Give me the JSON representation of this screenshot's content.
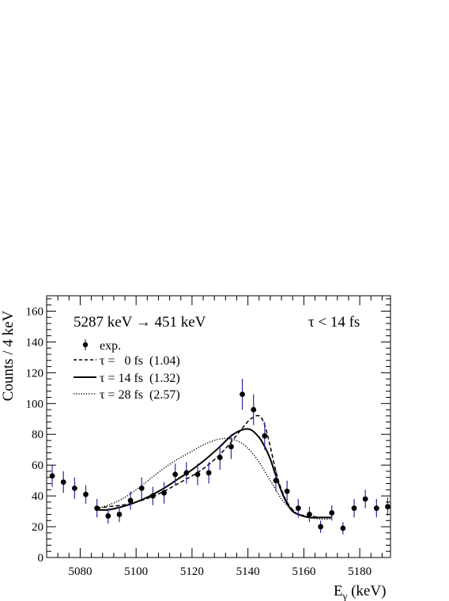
{
  "chart_data": {
    "type": "scatter",
    "title": "5287 keV →  451 keV",
    "annotation": "τ < 14 fs",
    "xlabel_main": "E",
    "xlabel_sub": "γ",
    "xlabel_unit": " (keV)",
    "ylabel": "Counts / 4 keV",
    "xlim": [
      5068,
      5191
    ],
    "ylim": [
      0,
      170
    ],
    "grid": false,
    "x_ticks": [
      5080,
      5100,
      5120,
      5140,
      5160,
      5180
    ],
    "y_ticks": [
      0,
      20,
      40,
      60,
      80,
      100,
      120,
      140,
      160
    ],
    "legend_position": "top-left",
    "legend": [
      {
        "label": "exp.",
        "style": "marker"
      },
      {
        "label": "τ =   0 fs  (1.04)",
        "style": "dashed"
      },
      {
        "label": "τ = 14 fs  (1.32)",
        "style": "solid"
      },
      {
        "label": "τ = 28 fs  (2.57)",
        "style": "dotted"
      }
    ],
    "error_bar_color": "#2a2aa0",
    "points": [
      {
        "x": 5070,
        "y": 53,
        "err": 7
      },
      {
        "x": 5074,
        "y": 49,
        "err": 7
      },
      {
        "x": 5078,
        "y": 45,
        "err": 7
      },
      {
        "x": 5082,
        "y": 41,
        "err": 6
      },
      {
        "x": 5086,
        "y": 32,
        "err": 6
      },
      {
        "x": 5090,
        "y": 27,
        "err": 5
      },
      {
        "x": 5094,
        "y": 28,
        "err": 5
      },
      {
        "x": 5098,
        "y": 37,
        "err": 6
      },
      {
        "x": 5102,
        "y": 45,
        "err": 7
      },
      {
        "x": 5106,
        "y": 40,
        "err": 6
      },
      {
        "x": 5110,
        "y": 42,
        "err": 7
      },
      {
        "x": 5114,
        "y": 54,
        "err": 7
      },
      {
        "x": 5118,
        "y": 55,
        "err": 7
      },
      {
        "x": 5122,
        "y": 54,
        "err": 7
      },
      {
        "x": 5126,
        "y": 55,
        "err": 7
      },
      {
        "x": 5130,
        "y": 65,
        "err": 8
      },
      {
        "x": 5134,
        "y": 72,
        "err": 8
      },
      {
        "x": 5138,
        "y": 106,
        "err": 10
      },
      {
        "x": 5142,
        "y": 96,
        "err": 10
      },
      {
        "x": 5146,
        "y": 79,
        "err": 9
      },
      {
        "x": 5150,
        "y": 50,
        "err": 7
      },
      {
        "x": 5154,
        "y": 43,
        "err": 7
      },
      {
        "x": 5158,
        "y": 32,
        "err": 6
      },
      {
        "x": 5162,
        "y": 28,
        "err": 5
      },
      {
        "x": 5166,
        "y": 20,
        "err": 4
      },
      {
        "x": 5170,
        "y": 29,
        "err": 5
      },
      {
        "x": 5174,
        "y": 19,
        "err": 4
      },
      {
        "x": 5178,
        "y": 32,
        "err": 6
      },
      {
        "x": 5182,
        "y": 38,
        "err": 6
      },
      {
        "x": 5186,
        "y": 32,
        "err": 6
      },
      {
        "x": 5190,
        "y": 33,
        "err": 6
      }
    ],
    "series": [
      {
        "name": "τ = 0 fs",
        "style": "dashed",
        "x": [
          5086,
          5090,
          5095,
          5100,
          5105,
          5110,
          5115,
          5120,
          5125,
          5130,
          5134,
          5138,
          5141,
          5144,
          5146,
          5148,
          5150,
          5152,
          5154,
          5156,
          5158,
          5162,
          5166,
          5170
        ],
        "y": [
          32,
          33,
          34,
          36,
          39,
          43,
          48,
          53,
          59,
          67,
          75,
          84,
          90,
          92,
          86,
          72,
          56,
          44,
          36,
          31,
          28,
          27,
          26,
          26
        ]
      },
      {
        "name": "τ = 14 fs",
        "style": "solid",
        "x": [
          5086,
          5090,
          5095,
          5100,
          5105,
          5110,
          5115,
          5120,
          5125,
          5130,
          5134,
          5138,
          5141,
          5144,
          5146,
          5148,
          5150,
          5152,
          5154,
          5156,
          5158,
          5162,
          5166,
          5170
        ],
        "y": [
          31,
          31,
          33,
          36,
          40,
          45,
          51,
          57,
          64,
          72,
          79,
          83,
          83,
          78,
          72,
          64,
          53,
          43,
          35,
          30,
          28,
          26,
          26,
          26
        ]
      },
      {
        "name": "τ = 28 fs",
        "style": "dotted",
        "x": [
          5086,
          5090,
          5095,
          5100,
          5105,
          5110,
          5115,
          5120,
          5125,
          5130,
          5134,
          5138,
          5141,
          5144,
          5146,
          5148,
          5150,
          5152,
          5154,
          5156,
          5158,
          5162,
          5166,
          5170
        ],
        "y": [
          32,
          34,
          38,
          44,
          51,
          58,
          64,
          69,
          74,
          77,
          77,
          74,
          69,
          62,
          56,
          50,
          44,
          38,
          34,
          31,
          28,
          26,
          25,
          25
        ]
      }
    ]
  }
}
